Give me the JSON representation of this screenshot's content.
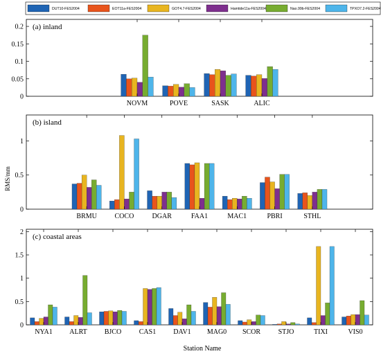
{
  "chart_data": {
    "type": "bar",
    "legend": {
      "placement": "top",
      "entries": [
        {
          "name": "DUT10-FES2004",
          "color": "#1f64b4"
        },
        {
          "name": "EOT11a-FES2004",
          "color": "#e8541c"
        },
        {
          "name": "GOT4.7-FES2004",
          "color": "#e8b520"
        },
        {
          "name": "Hamtide11a-FES2004",
          "color": "#7e2f8e"
        },
        {
          "name": "Nao.99b-FES2004",
          "color": "#77ac30"
        },
        {
          "name": "TPXO7.2-FES2004",
          "color": "#4eb5ea"
        }
      ]
    },
    "ylabel": "RMS/mm",
    "xlabel": "Station Name",
    "panels": [
      {
        "title": "(a) inland",
        "ylim": [
          0,
          0.22
        ],
        "yticks": [
          0,
          0.05,
          0.1,
          0.15,
          0.2
        ],
        "ytick_labels": [
          "0",
          "0.05",
          "0.1",
          "0.15",
          "0.2"
        ],
        "categories": [
          "NOVM",
          "POVE",
          "SASK",
          "ALIC"
        ],
        "values": [
          [
            0.063,
            0.05,
            0.052,
            0.04,
            0.175,
            0.055
          ],
          [
            0.03,
            0.029,
            0.034,
            0.026,
            0.036,
            0.025
          ],
          [
            0.065,
            0.062,
            0.077,
            0.073,
            0.06,
            0.064
          ],
          [
            0.06,
            0.058,
            0.062,
            0.051,
            0.085,
            0.077
          ]
        ]
      },
      {
        "title": "(b) island",
        "ylim": [
          0,
          1.38
        ],
        "yticks": [
          0,
          0.5,
          1
        ],
        "ytick_labels": [
          "0",
          "0.5",
          "1"
        ],
        "categories": [
          "BRMU",
          "COCO",
          "DGAR",
          "FAA1",
          "MAC1",
          "PBRI",
          "STHL"
        ],
        "values": [
          [
            0.37,
            0.38,
            0.5,
            0.32,
            0.43,
            0.35
          ],
          [
            0.12,
            0.14,
            1.08,
            0.15,
            0.25,
            1.03
          ],
          [
            0.27,
            0.19,
            0.19,
            0.25,
            0.25,
            0.17
          ],
          [
            0.67,
            0.65,
            0.68,
            0.16,
            0.67,
            0.67
          ],
          [
            0.19,
            0.14,
            0.16,
            0.15,
            0.19,
            0.16
          ],
          [
            0.39,
            0.47,
            0.4,
            0.3,
            0.51,
            0.51
          ],
          [
            0.23,
            0.24,
            0.2,
            0.25,
            0.29,
            0.29
          ]
        ]
      },
      {
        "title": "(c) coastal areas",
        "ylim": [
          0,
          2.05
        ],
        "yticks": [
          0,
          0.5,
          1,
          1.5,
          2
        ],
        "ytick_labels": [
          "0",
          "0.5",
          "1",
          "1.5",
          "2"
        ],
        "categories": [
          "NYA1",
          "ALRT",
          "BJCO",
          "CAS1",
          "DAV1",
          "MAG0",
          "SCOR",
          "STJO",
          "TIXI",
          "VIS0"
        ],
        "values": [
          [
            0.15,
            0.07,
            0.14,
            0.17,
            0.43,
            0.38
          ],
          [
            0.17,
            0.07,
            0.2,
            0.16,
            1.06,
            0.26
          ],
          [
            0.28,
            0.29,
            0.3,
            0.28,
            0.31,
            0.29
          ],
          [
            0.09,
            0.07,
            0.78,
            0.76,
            0.78,
            0.8
          ],
          [
            0.35,
            0.2,
            0.27,
            0.13,
            0.43,
            0.29
          ],
          [
            0.48,
            0.38,
            0.59,
            0.39,
            0.69,
            0.44
          ],
          [
            0.09,
            0.06,
            0.11,
            0.07,
            0.21,
            0.2
          ],
          [
            0.01,
            0.02,
            0.07,
            0.02,
            0.05,
            0.02
          ],
          [
            0.15,
            0.05,
            1.68,
            0.2,
            0.47,
            1.68
          ],
          [
            0.17,
            0.19,
            0.22,
            0.22,
            0.52,
            0.21
          ]
        ]
      }
    ]
  }
}
